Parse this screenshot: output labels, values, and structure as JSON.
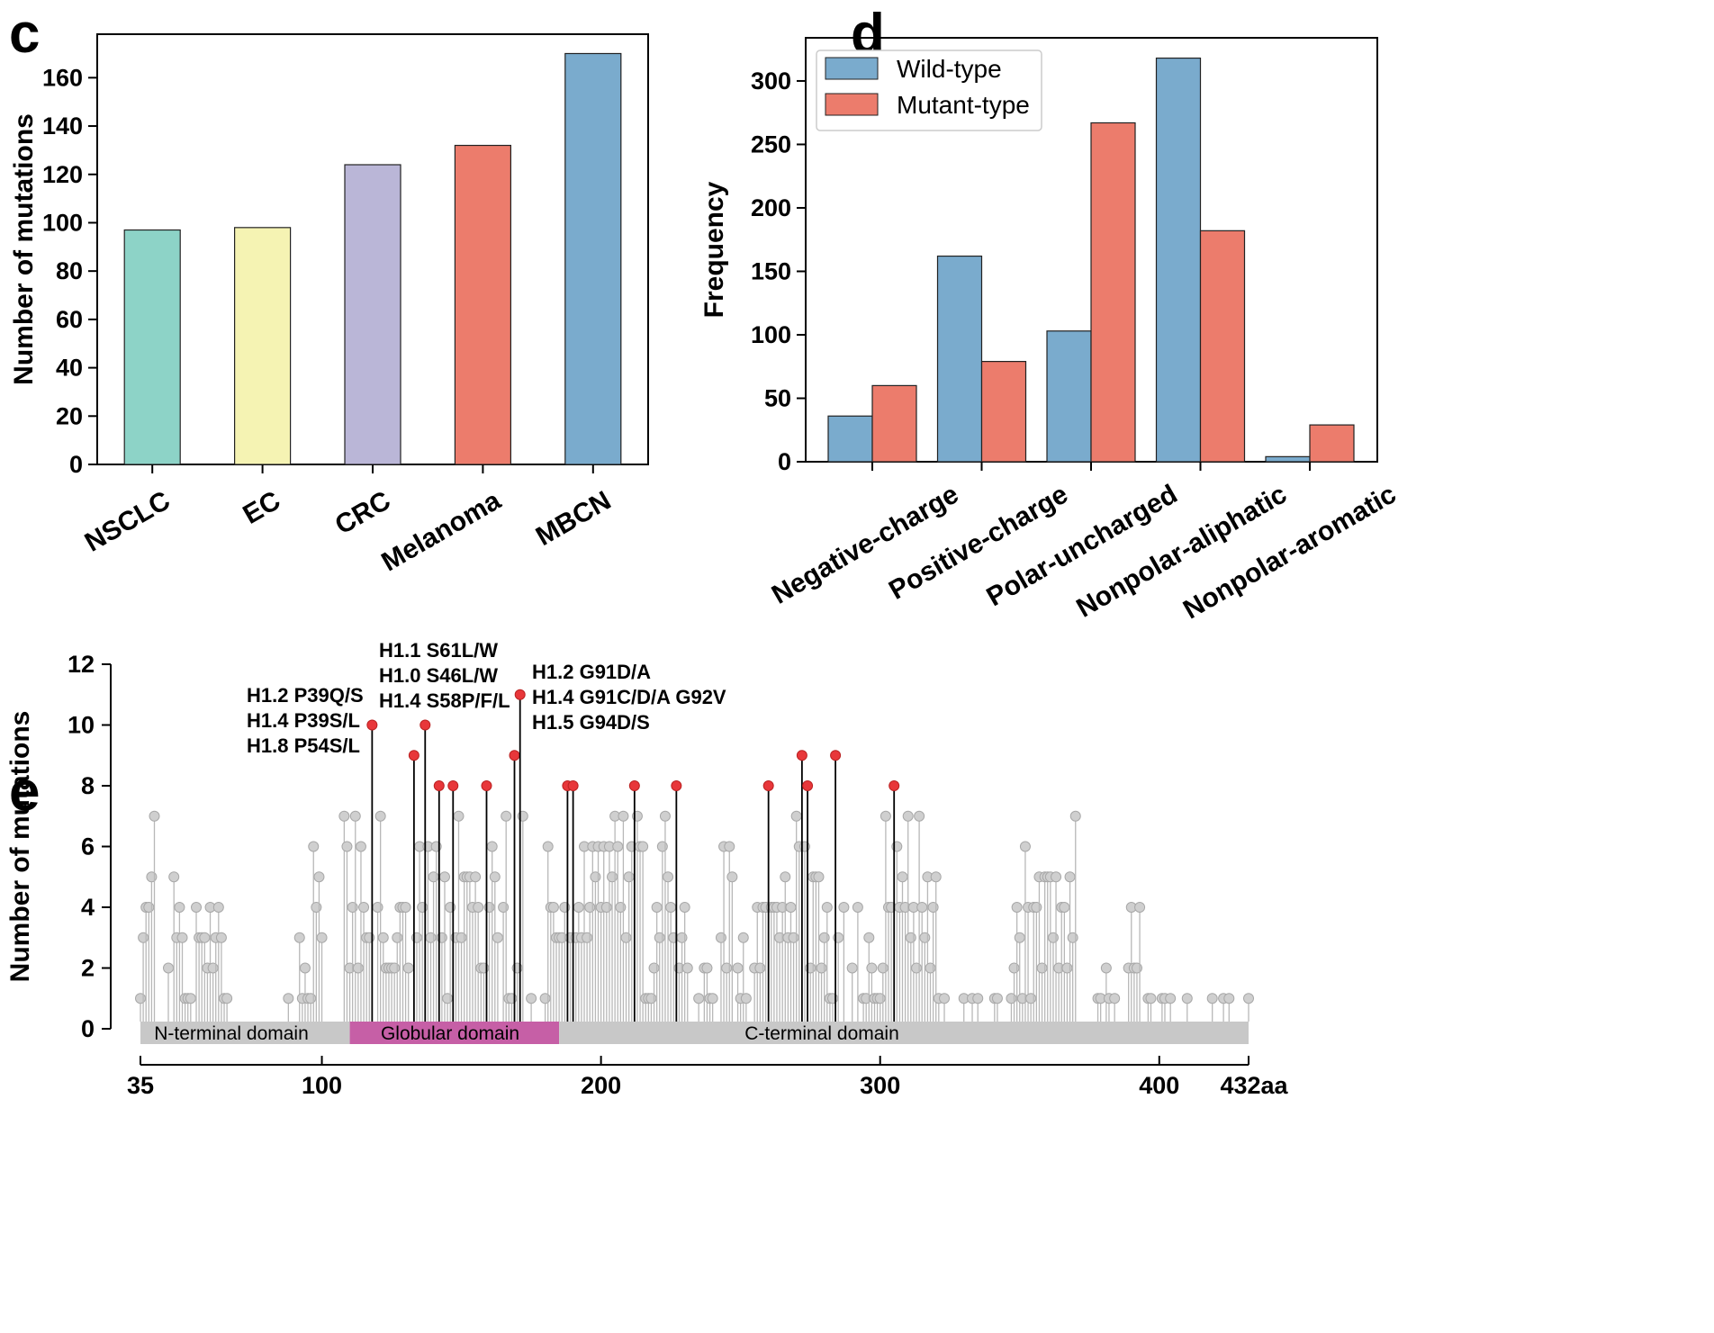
{
  "panels": {
    "c": "c",
    "d": "d",
    "e": "e"
  },
  "chart_data": [
    {
      "type": "bar",
      "panel": "c",
      "categories": [
        "NSCLC",
        "EC",
        "CRC",
        "Melanoma",
        "MBCN"
      ],
      "values": [
        97,
        98,
        124,
        132,
        170
      ],
      "colors": [
        "#8dd3c7",
        "#f5f3b3",
        "#bab6d7",
        "#ec7c6c",
        "#7aabcd"
      ],
      "ylabel": "Number of mutations",
      "ylim": [
        0,
        178
      ],
      "yticks": [
        0,
        20,
        40,
        60,
        80,
        100,
        120,
        140,
        160
      ]
    },
    {
      "type": "bar",
      "panel": "d",
      "categories": [
        "Negative-charge",
        "Positive-charge",
        "Polar-uncharged",
        "Nonpolar-aliphatic",
        "Nonpolar-aromatic"
      ],
      "series": [
        {
          "name": "Wild-type",
          "color": "#7aabcd",
          "values": [
            36,
            162,
            103,
            318,
            4
          ]
        },
        {
          "name": "Mutant-type",
          "color": "#ec7c6c",
          "values": [
            60,
            79,
            267,
            182,
            29
          ]
        }
      ],
      "ylabel": "Frequency",
      "ylim": [
        0,
        334
      ],
      "yticks": [
        0,
        50,
        100,
        150,
        200,
        250,
        300
      ],
      "legend": "top-left"
    },
    {
      "type": "scatter",
      "subtype": "lollipop",
      "panel": "e",
      "ylabel": "Number of mutations",
      "ylim": [
        0,
        12
      ],
      "yticks": [
        0,
        2,
        4,
        6,
        8,
        10,
        12
      ],
      "xlim": [
        35,
        432
      ],
      "xticks": [
        "35",
        "100",
        "200",
        "300",
        "400",
        "432aa"
      ],
      "xtick_values": [
        35,
        100,
        200,
        300,
        400,
        432
      ],
      "domains": [
        {
          "name": "N-terminal domain",
          "start": 35,
          "end": 110,
          "color": "#c8c8c8"
        },
        {
          "name": "Globular domain",
          "start": 110,
          "end": 185,
          "color": "#c65fa6"
        },
        {
          "name": "C-terminal domain",
          "start": 185,
          "end": 432,
          "color": "#c8c8c8"
        }
      ],
      "highlight_color": "#e8373a",
      "point_color": "#cfcfcf",
      "highlight": [
        {
          "x": 118,
          "y": 10
        },
        {
          "x": 133,
          "y": 9
        },
        {
          "x": 137,
          "y": 10
        },
        {
          "x": 142,
          "y": 8
        },
        {
          "x": 147,
          "y": 8
        },
        {
          "x": 159,
          "y": 8
        },
        {
          "x": 169,
          "y": 9
        },
        {
          "x": 171,
          "y": 11
        },
        {
          "x": 188,
          "y": 8
        },
        {
          "x": 190,
          "y": 8
        },
        {
          "x": 212,
          "y": 8
        },
        {
          "x": 227,
          "y": 8
        },
        {
          "x": 260,
          "y": 8
        },
        {
          "x": 272,
          "y": 9
        },
        {
          "x": 274,
          "y": 8
        },
        {
          "x": 284,
          "y": 9
        },
        {
          "x": 305,
          "y": 8
        }
      ],
      "points": [
        {
          "x": 35,
          "y": 1
        },
        {
          "x": 36,
          "y": 3
        },
        {
          "x": 37,
          "y": 4
        },
        {
          "x": 38,
          "y": 4
        },
        {
          "x": 39,
          "y": 5
        },
        {
          "x": 40,
          "y": 7
        },
        {
          "x": 45,
          "y": 2
        },
        {
          "x": 47,
          "y": 5
        },
        {
          "x": 48,
          "y": 3
        },
        {
          "x": 49,
          "y": 4
        },
        {
          "x": 50,
          "y": 3
        },
        {
          "x": 51,
          "y": 1
        },
        {
          "x": 52,
          "y": 1
        },
        {
          "x": 53,
          "y": 1
        },
        {
          "x": 55,
          "y": 4
        },
        {
          "x": 56,
          "y": 3
        },
        {
          "x": 57,
          "y": 3
        },
        {
          "x": 58,
          "y": 3
        },
        {
          "x": 59,
          "y": 2
        },
        {
          "x": 60,
          "y": 4
        },
        {
          "x": 61,
          "y": 2
        },
        {
          "x": 62,
          "y": 3
        },
        {
          "x": 63,
          "y": 4
        },
        {
          "x": 64,
          "y": 3
        },
        {
          "x": 65,
          "y": 1
        },
        {
          "x": 66,
          "y": 1
        },
        {
          "x": 88,
          "y": 1
        },
        {
          "x": 92,
          "y": 3
        },
        {
          "x": 93,
          "y": 1
        },
        {
          "x": 94,
          "y": 2
        },
        {
          "x": 95,
          "y": 1
        },
        {
          "x": 96,
          "y": 1
        },
        {
          "x": 97,
          "y": 6
        },
        {
          "x": 98,
          "y": 4
        },
        {
          "x": 99,
          "y": 5
        },
        {
          "x": 100,
          "y": 3
        },
        {
          "x": 108,
          "y": 7
        },
        {
          "x": 109,
          "y": 6
        },
        {
          "x": 110,
          "y": 2
        },
        {
          "x": 111,
          "y": 4
        },
        {
          "x": 112,
          "y": 7
        },
        {
          "x": 113,
          "y": 2
        },
        {
          "x": 114,
          "y": 6
        },
        {
          "x": 115,
          "y": 4
        },
        {
          "x": 116,
          "y": 3
        },
        {
          "x": 117,
          "y": 3
        },
        {
          "x": 120,
          "y": 4
        },
        {
          "x": 121,
          "y": 7
        },
        {
          "x": 122,
          "y": 3
        },
        {
          "x": 123,
          "y": 2
        },
        {
          "x": 124,
          "y": 2
        },
        {
          "x": 125,
          "y": 2
        },
        {
          "x": 126,
          "y": 2
        },
        {
          "x": 127,
          "y": 3
        },
        {
          "x": 128,
          "y": 4
        },
        {
          "x": 129,
          "y": 4
        },
        {
          "x": 130,
          "y": 4
        },
        {
          "x": 131,
          "y": 2
        },
        {
          "x": 134,
          "y": 3
        },
        {
          "x": 135,
          "y": 6
        },
        {
          "x": 136,
          "y": 4
        },
        {
          "x": 138,
          "y": 6
        },
        {
          "x": 139,
          "y": 3
        },
        {
          "x": 140,
          "y": 5
        },
        {
          "x": 141,
          "y": 6
        },
        {
          "x": 143,
          "y": 3
        },
        {
          "x": 144,
          "y": 5
        },
        {
          "x": 145,
          "y": 1
        },
        {
          "x": 146,
          "y": 4
        },
        {
          "x": 148,
          "y": 3
        },
        {
          "x": 149,
          "y": 7
        },
        {
          "x": 150,
          "y": 3
        },
        {
          "x": 151,
          "y": 5
        },
        {
          "x": 152,
          "y": 5
        },
        {
          "x": 153,
          "y": 5
        },
        {
          "x": 154,
          "y": 4
        },
        {
          "x": 155,
          "y": 5
        },
        {
          "x": 156,
          "y": 4
        },
        {
          "x": 157,
          "y": 2
        },
        {
          "x": 158,
          "y": 2
        },
        {
          "x": 160,
          "y": 4
        },
        {
          "x": 161,
          "y": 6
        },
        {
          "x": 162,
          "y": 5
        },
        {
          "x": 163,
          "y": 3
        },
        {
          "x": 165,
          "y": 4
        },
        {
          "x": 166,
          "y": 7
        },
        {
          "x": 167,
          "y": 1
        },
        {
          "x": 168,
          "y": 1
        },
        {
          "x": 170,
          "y": 2
        },
        {
          "x": 172,
          "y": 7
        },
        {
          "x": 175,
          "y": 1
        },
        {
          "x": 180,
          "y": 1
        },
        {
          "x": 181,
          "y": 6
        },
        {
          "x": 182,
          "y": 4
        },
        {
          "x": 183,
          "y": 4
        },
        {
          "x": 184,
          "y": 3
        },
        {
          "x": 185,
          "y": 3
        },
        {
          "x": 186,
          "y": 3
        },
        {
          "x": 187,
          "y": 4
        },
        {
          "x": 189,
          "y": 3
        },
        {
          "x": 191,
          "y": 3
        },
        {
          "x": 192,
          "y": 4
        },
        {
          "x": 193,
          "y": 3
        },
        {
          "x": 194,
          "y": 6
        },
        {
          "x": 195,
          "y": 3
        },
        {
          "x": 196,
          "y": 4
        },
        {
          "x": 197,
          "y": 6
        },
        {
          "x": 198,
          "y": 5
        },
        {
          "x": 199,
          "y": 6
        },
        {
          "x": 200,
          "y": 4
        },
        {
          "x": 201,
          "y": 6
        },
        {
          "x": 202,
          "y": 4
        },
        {
          "x": 203,
          "y": 6
        },
        {
          "x": 204,
          "y": 5
        },
        {
          "x": 205,
          "y": 7
        },
        {
          "x": 206,
          "y": 6
        },
        {
          "x": 207,
          "y": 4
        },
        {
          "x": 208,
          "y": 7
        },
        {
          "x": 209,
          "y": 3
        },
        {
          "x": 210,
          "y": 5
        },
        {
          "x": 211,
          "y": 6
        },
        {
          "x": 213,
          "y": 7
        },
        {
          "x": 214,
          "y": 6
        },
        {
          "x": 215,
          "y": 6
        },
        {
          "x": 216,
          "y": 1
        },
        {
          "x": 217,
          "y": 1
        },
        {
          "x": 218,
          "y": 1
        },
        {
          "x": 219,
          "y": 2
        },
        {
          "x": 220,
          "y": 4
        },
        {
          "x": 221,
          "y": 3
        },
        {
          "x": 222,
          "y": 6
        },
        {
          "x": 223,
          "y": 7
        },
        {
          "x": 224,
          "y": 5
        },
        {
          "x": 225,
          "y": 4
        },
        {
          "x": 226,
          "y": 3
        },
        {
          "x": 228,
          "y": 2
        },
        {
          "x": 229,
          "y": 3
        },
        {
          "x": 230,
          "y": 4
        },
        {
          "x": 231,
          "y": 2
        },
        {
          "x": 235,
          "y": 1
        },
        {
          "x": 237,
          "y": 2
        },
        {
          "x": 238,
          "y": 2
        },
        {
          "x": 239,
          "y": 1
        },
        {
          "x": 240,
          "y": 1
        },
        {
          "x": 243,
          "y": 3
        },
        {
          "x": 244,
          "y": 6
        },
        {
          "x": 245,
          "y": 2
        },
        {
          "x": 246,
          "y": 6
        },
        {
          "x": 247,
          "y": 5
        },
        {
          "x": 249,
          "y": 2
        },
        {
          "x": 250,
          "y": 1
        },
        {
          "x": 251,
          "y": 3
        },
        {
          "x": 252,
          "y": 1
        },
        {
          "x": 255,
          "y": 2
        },
        {
          "x": 256,
          "y": 4
        },
        {
          "x": 257,
          "y": 2
        },
        {
          "x": 258,
          "y": 4
        },
        {
          "x": 259,
          "y": 4
        },
        {
          "x": 261,
          "y": 4
        },
        {
          "x": 262,
          "y": 4
        },
        {
          "x": 263,
          "y": 4
        },
        {
          "x": 264,
          "y": 3
        },
        {
          "x": 265,
          "y": 4
        },
        {
          "x": 266,
          "y": 5
        },
        {
          "x": 267,
          "y": 3
        },
        {
          "x": 268,
          "y": 4
        },
        {
          "x": 269,
          "y": 3
        },
        {
          "x": 270,
          "y": 7
        },
        {
          "x": 271,
          "y": 6
        },
        {
          "x": 273,
          "y": 6
        },
        {
          "x": 275,
          "y": 2
        },
        {
          "x": 276,
          "y": 5
        },
        {
          "x": 277,
          "y": 5
        },
        {
          "x": 278,
          "y": 5
        },
        {
          "x": 279,
          "y": 2
        },
        {
          "x": 280,
          "y": 3
        },
        {
          "x": 281,
          "y": 4
        },
        {
          "x": 282,
          "y": 1
        },
        {
          "x": 283,
          "y": 1
        },
        {
          "x": 285,
          "y": 3
        },
        {
          "x": 287,
          "y": 4
        },
        {
          "x": 290,
          "y": 2
        },
        {
          "x": 292,
          "y": 4
        },
        {
          "x": 294,
          "y": 1
        },
        {
          "x": 295,
          "y": 1
        },
        {
          "x": 296,
          "y": 3
        },
        {
          "x": 297,
          "y": 2
        },
        {
          "x": 298,
          "y": 1
        },
        {
          "x": 299,
          "y": 1
        },
        {
          "x": 300,
          "y": 1
        },
        {
          "x": 301,
          "y": 2
        },
        {
          "x": 302,
          "y": 7
        },
        {
          "x": 303,
          "y": 4
        },
        {
          "x": 304,
          "y": 4
        },
        {
          "x": 306,
          "y": 6
        },
        {
          "x": 307,
          "y": 4
        },
        {
          "x": 308,
          "y": 5
        },
        {
          "x": 309,
          "y": 4
        },
        {
          "x": 310,
          "y": 7
        },
        {
          "x": 311,
          "y": 3
        },
        {
          "x": 312,
          "y": 4
        },
        {
          "x": 313,
          "y": 2
        },
        {
          "x": 314,
          "y": 7
        },
        {
          "x": 315,
          "y": 4
        },
        {
          "x": 316,
          "y": 3
        },
        {
          "x": 317,
          "y": 5
        },
        {
          "x": 318,
          "y": 2
        },
        {
          "x": 319,
          "y": 4
        },
        {
          "x": 320,
          "y": 5
        },
        {
          "x": 321,
          "y": 1
        },
        {
          "x": 323,
          "y": 1
        },
        {
          "x": 330,
          "y": 1
        },
        {
          "x": 333,
          "y": 1
        },
        {
          "x": 335,
          "y": 1
        },
        {
          "x": 341,
          "y": 1
        },
        {
          "x": 342,
          "y": 1
        },
        {
          "x": 347,
          "y": 1
        },
        {
          "x": 348,
          "y": 2
        },
        {
          "x": 349,
          "y": 4
        },
        {
          "x": 350,
          "y": 3
        },
        {
          "x": 351,
          "y": 1
        },
        {
          "x": 352,
          "y": 6
        },
        {
          "x": 353,
          "y": 4
        },
        {
          "x": 354,
          "y": 1
        },
        {
          "x": 355,
          "y": 4
        },
        {
          "x": 356,
          "y": 4
        },
        {
          "x": 357,
          "y": 5
        },
        {
          "x": 358,
          "y": 2
        },
        {
          "x": 359,
          "y": 5
        },
        {
          "x": 360,
          "y": 5
        },
        {
          "x": 361,
          "y": 5
        },
        {
          "x": 362,
          "y": 3
        },
        {
          "x": 363,
          "y": 5
        },
        {
          "x": 364,
          "y": 2
        },
        {
          "x": 365,
          "y": 4
        },
        {
          "x": 366,
          "y": 4
        },
        {
          "x": 367,
          "y": 2
        },
        {
          "x": 368,
          "y": 5
        },
        {
          "x": 369,
          "y": 3
        },
        {
          "x": 370,
          "y": 7
        },
        {
          "x": 378,
          "y": 1
        },
        {
          "x": 379,
          "y": 1
        },
        {
          "x": 381,
          "y": 2
        },
        {
          "x": 382,
          "y": 1
        },
        {
          "x": 384,
          "y": 1
        },
        {
          "x": 389,
          "y": 2
        },
        {
          "x": 390,
          "y": 4
        },
        {
          "x": 391,
          "y": 2
        },
        {
          "x": 392,
          "y": 2
        },
        {
          "x": 393,
          "y": 4
        },
        {
          "x": 396,
          "y": 1
        },
        {
          "x": 397,
          "y": 1
        },
        {
          "x": 401,
          "y": 1
        },
        {
          "x": 402,
          "y": 1
        },
        {
          "x": 404,
          "y": 1
        },
        {
          "x": 410,
          "y": 1
        },
        {
          "x": 419,
          "y": 1
        },
        {
          "x": 423,
          "y": 1
        },
        {
          "x": 425,
          "y": 1
        },
        {
          "x": 432,
          "y": 1
        }
      ],
      "annotations": [
        {
          "lines": [
            "H1.2 P39Q/S",
            "H1.4 P39S/L",
            "H1.8 P54S/L"
          ]
        },
        {
          "lines": [
            "H1.1 S61L/W",
            "H1.0 S46L/W",
            "H1.4 S58P/F/L"
          ]
        },
        {
          "lines": [
            "H1.2 G91D/A",
            "H1.4 G91C/D/A G92V",
            "H1.5 G94D/S"
          ]
        }
      ]
    }
  ]
}
